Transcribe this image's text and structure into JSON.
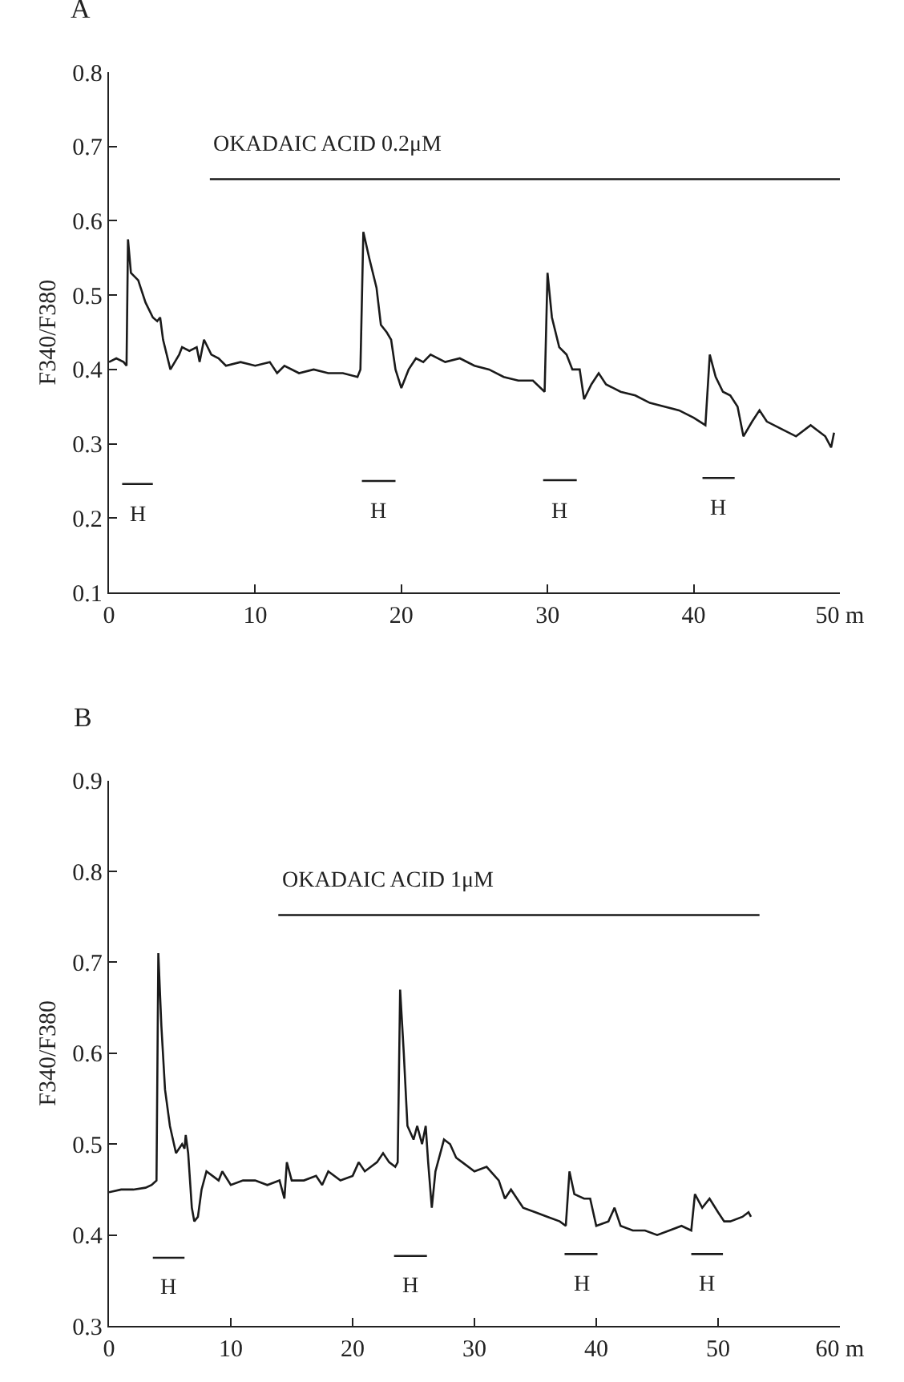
{
  "chart_data": [
    {
      "type": "line",
      "title": "A",
      "ylabel": "F340/F380",
      "xlim": [
        0,
        50
      ],
      "ylim": [
        0.1,
        0.8
      ],
      "xticks": [
        0,
        10,
        20,
        30,
        40,
        {
          "value": 50,
          "label": "50 m"
        }
      ],
      "yticks": [
        0.1,
        0.2,
        0.3,
        0.4,
        0.5,
        0.6,
        0.7,
        0.8
      ],
      "marker": "none",
      "line_style": "solid",
      "series": [
        {
          "color": "#1a1a1a",
          "x": [
            0,
            0.5,
            1,
            1.2,
            1.3,
            1.5,
            2,
            2.5,
            3,
            3.3,
            3.5,
            3.7,
            4.2,
            4.8,
            5,
            5.5,
            6,
            6.2,
            6.5,
            7,
            7.5,
            8,
            9,
            10,
            11,
            11.5,
            12,
            13,
            14,
            15,
            16,
            17,
            17.2,
            17.4,
            17.8,
            18.3,
            18.6,
            19,
            19.3,
            19.6,
            20,
            20.5,
            21,
            21.5,
            22,
            23,
            24,
            25,
            26,
            27,
            28,
            29,
            29.8,
            30,
            30.3,
            30.8,
            31.3,
            31.7,
            32.2,
            32.5,
            33,
            33.5,
            34,
            35,
            36,
            37,
            38,
            39,
            40,
            40.8,
            41.1,
            41.5,
            42,
            42.5,
            43,
            43.4,
            44,
            44.5,
            45,
            46,
            47,
            48,
            49,
            49.4,
            49.6
          ],
          "values": [
            0.41,
            0.415,
            0.41,
            0.405,
            0.575,
            0.53,
            0.52,
            0.49,
            0.47,
            0.465,
            0.47,
            0.44,
            0.4,
            0.42,
            0.43,
            0.425,
            0.43,
            0.41,
            0.44,
            0.42,
            0.415,
            0.405,
            0.41,
            0.405,
            0.41,
            0.395,
            0.405,
            0.395,
            0.4,
            0.395,
            0.395,
            0.39,
            0.4,
            0.585,
            0.55,
            0.51,
            0.46,
            0.45,
            0.44,
            0.4,
            0.375,
            0.4,
            0.415,
            0.41,
            0.42,
            0.41,
            0.415,
            0.405,
            0.4,
            0.39,
            0.385,
            0.385,
            0.37,
            0.53,
            0.47,
            0.43,
            0.42,
            0.4,
            0.4,
            0.36,
            0.38,
            0.395,
            0.38,
            0.37,
            0.365,
            0.355,
            0.35,
            0.345,
            0.335,
            0.325,
            0.42,
            0.39,
            0.37,
            0.365,
            0.35,
            0.31,
            0.33,
            0.345,
            0.33,
            0.32,
            0.31,
            0.325,
            0.31,
            0.295,
            0.315
          ]
        },
        {
          "color": "#1a1a1a",
          "x": [
            6.9,
            50
          ],
          "values": [
            0.656,
            0.656
          ]
        },
        {
          "color": "#1a1a1a",
          "x": [
            0.9,
            3.0
          ],
          "values": [
            0.246,
            0.246
          ]
        },
        {
          "color": "#1a1a1a",
          "x": [
            17.3,
            19.6
          ],
          "values": [
            0.25,
            0.25
          ]
        },
        {
          "color": "#1a1a1a",
          "x": [
            29.7,
            32.0
          ],
          "values": [
            0.251,
            0.251
          ]
        },
        {
          "color": "#1a1a1a",
          "x": [
            40.6,
            42.8
          ],
          "values": [
            0.254,
            0.254
          ]
        }
      ],
      "annotations": [
        {
          "text": "OKADAIC ACID 0.2μM",
          "x": 6.9,
          "y": 0.656
        },
        {
          "text": "H",
          "x": 1.95,
          "y": 0.246
        },
        {
          "text": "H",
          "x": 18.45,
          "y": 0.25
        },
        {
          "text": "H",
          "x": 30.85,
          "y": 0.251
        },
        {
          "text": "H",
          "x": 41.7,
          "y": 0.254
        }
      ]
    },
    {
      "type": "line",
      "title": "B",
      "ylabel": "F340/F380",
      "xlim": [
        0,
        60
      ],
      "ylim": [
        0.3,
        0.9
      ],
      "xticks": [
        0,
        10,
        20,
        30,
        40,
        50,
        {
          "value": 60,
          "label": "60 m"
        }
      ],
      "yticks": [
        0.3,
        0.4,
        0.5,
        0.6,
        0.7,
        0.8,
        0.9
      ],
      "marker": "none",
      "line_style": "solid",
      "series": [
        {
          "color": "#1a1a1a",
          "x": [
            0,
            1,
            2,
            3,
            3.5,
            3.9,
            4.05,
            4.3,
            4.6,
            5,
            5.5,
            6,
            6.2,
            6.3,
            6.5,
            6.8,
            7,
            7.3,
            7.6,
            8,
            8.5,
            9,
            9.3,
            10,
            11,
            12,
            13,
            14,
            14.4,
            14.6,
            15,
            16,
            17,
            17.5,
            18,
            19,
            20,
            20.5,
            21,
            22,
            22.5,
            23,
            23.5,
            23.7,
            23.9,
            24.2,
            24.5,
            25,
            25.3,
            25.7,
            26,
            26.2,
            26.5,
            26.8,
            27.5,
            28,
            28.5,
            29,
            30,
            31,
            32,
            32.5,
            33,
            34,
            35,
            36,
            37,
            37.5,
            37.8,
            38.2,
            39,
            39.5,
            40,
            41,
            41.5,
            42,
            43,
            44,
            45,
            46,
            47,
            47.8,
            48.1,
            48.7,
            49.3,
            50,
            50.5,
            51,
            52,
            52.5,
            52.7
          ],
          "values": [
            0.447,
            0.45,
            0.45,
            0.452,
            0.455,
            0.46,
            0.71,
            0.63,
            0.56,
            0.52,
            0.49,
            0.5,
            0.495,
            0.51,
            0.49,
            0.43,
            0.415,
            0.42,
            0.45,
            0.47,
            0.465,
            0.46,
            0.47,
            0.455,
            0.46,
            0.46,
            0.455,
            0.46,
            0.44,
            0.48,
            0.46,
            0.46,
            0.465,
            0.455,
            0.47,
            0.46,
            0.465,
            0.48,
            0.47,
            0.48,
            0.49,
            0.48,
            0.475,
            0.48,
            0.67,
            0.6,
            0.52,
            0.505,
            0.52,
            0.5,
            0.52,
            0.48,
            0.43,
            0.47,
            0.505,
            0.5,
            0.485,
            0.48,
            0.47,
            0.475,
            0.46,
            0.44,
            0.45,
            0.43,
            0.425,
            0.42,
            0.415,
            0.41,
            0.47,
            0.445,
            0.44,
            0.44,
            0.41,
            0.415,
            0.43,
            0.41,
            0.405,
            0.405,
            0.4,
            0.405,
            0.41,
            0.405,
            0.445,
            0.43,
            0.44,
            0.425,
            0.415,
            0.415,
            0.42,
            0.425,
            0.42
          ]
        },
        {
          "color": "#1a1a1a",
          "x": [
            13.9,
            53.4
          ],
          "values": [
            0.752,
            0.752
          ]
        },
        {
          "color": "#1a1a1a",
          "x": [
            3.6,
            6.2
          ],
          "values": [
            0.375,
            0.375
          ]
        },
        {
          "color": "#1a1a1a",
          "x": [
            23.4,
            26.1
          ],
          "values": [
            0.377,
            0.377
          ]
        },
        {
          "color": "#1a1a1a",
          "x": [
            37.4,
            40.1
          ],
          "values": [
            0.379,
            0.379
          ]
        },
        {
          "color": "#1a1a1a",
          "x": [
            47.8,
            50.4
          ],
          "values": [
            0.379,
            0.379
          ]
        }
      ],
      "annotations": [
        {
          "text": "OKADAIC ACID 1μM",
          "x": 13.9,
          "y": 0.752
        },
        {
          "text": "H",
          "x": 4.9,
          "y": 0.375
        },
        {
          "text": "H",
          "x": 24.75,
          "y": 0.377
        },
        {
          "text": "H",
          "x": 38.75,
          "y": 0.379
        },
        {
          "text": "H",
          "x": 49.1,
          "y": 0.379
        }
      ]
    }
  ]
}
